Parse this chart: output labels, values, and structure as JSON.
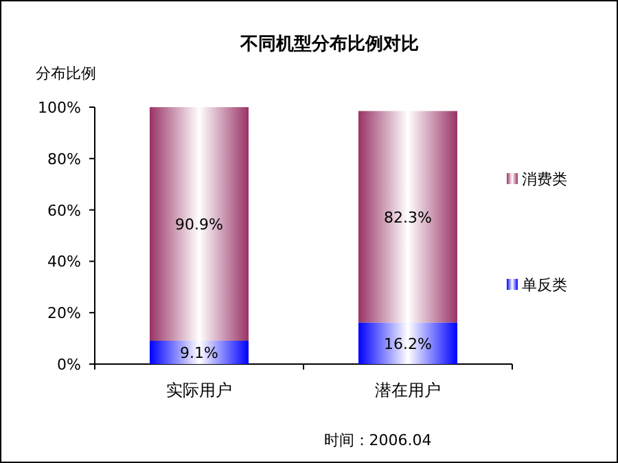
{
  "chart_data": {
    "type": "bar",
    "title": "不同机型分布比例对比",
    "ylabel": "分布比例",
    "categories": [
      "实际用户",
      "潜在用户"
    ],
    "series": [
      {
        "name": "单反类",
        "color": "#0000ff",
        "values": [
          9.1,
          16.2
        ],
        "value_labels": [
          "9.1%",
          "16.2%"
        ]
      },
      {
        "name": "消费类",
        "color": "#993366",
        "values": [
          90.9,
          82.3
        ],
        "value_labels": [
          "90.9%",
          "82.3%"
        ]
      }
    ],
    "stacked": true,
    "ylim": [
      0,
      100
    ],
    "yticks": [
      {
        "value": 0,
        "label": "0%"
      },
      {
        "value": 20,
        "label": "20%"
      },
      {
        "value": 40,
        "label": "40%"
      },
      {
        "value": 60,
        "label": "60%"
      },
      {
        "value": 80,
        "label": "80%"
      },
      {
        "value": 100,
        "label": "100%"
      }
    ],
    "legend": "right",
    "annotations": [
      "时间：2006.04"
    ]
  }
}
